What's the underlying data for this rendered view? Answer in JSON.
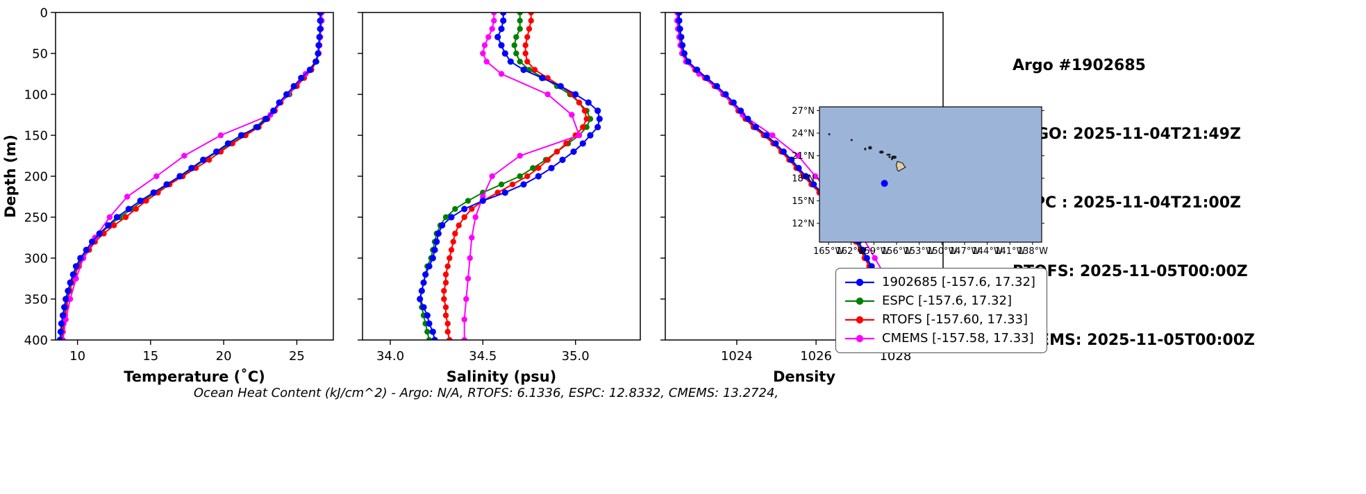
{
  "header": {
    "lines": [
      "Argo #1902685",
      "ARGO: 2025-11-04T21:49Z",
      "ESPC : 2025-11-04T21:00Z",
      "RTOFS: 2025-11-05T00:00Z",
      "CMEMS: 2025-11-05T00:00Z"
    ]
  },
  "footer": {
    "ohc_text": "Ocean Heat Content (kJ/cm^2) - Argo: N/A,  RTOFS: 6.1336,  ESPC: 12.8332,  CMEMS: 13.2724,"
  },
  "legend": {
    "position": "below-map-right",
    "entries": [
      {
        "label": "1902685 [-157.6, 17.32]",
        "color": "#0000ff"
      },
      {
        "label": "ESPC [-157.6, 17.32]",
        "color": "#008000"
      },
      {
        "label": "RTOFS [-157.60, 17.33]",
        "color": "#ff0000"
      },
      {
        "label": "CMEMS [-157.58, 17.33]",
        "color": "#ff00ff"
      }
    ]
  },
  "map": {
    "ocean_color": "#9db4d9",
    "land_color": "#e0cda4",
    "lon_range": [
      -166.2,
      -136.8
    ],
    "lat_range": [
      9.5,
      27.5
    ],
    "lon_ticks": [
      -165,
      -162,
      -159,
      -156,
      -153,
      -150,
      -147,
      -144,
      -141,
      -138
    ],
    "lon_tick_labels": [
      "165°W",
      "162°W",
      "159°W",
      "156°W",
      "153°W",
      "150°W",
      "147°W",
      "144°W",
      "141°W",
      "138°W"
    ],
    "lat_ticks": [
      12,
      15,
      18,
      21,
      24,
      27
    ],
    "lat_tick_labels": [
      "12°N",
      "15°N",
      "18°N",
      "21°N",
      "24°N",
      "27°N"
    ],
    "float_marker": {
      "lon": -157.6,
      "lat": 17.32,
      "color": "#0000ff"
    },
    "islands_small": [
      [
        -160.15,
        21.9,
        0.13,
        0.18
      ],
      [
        -159.5,
        22.05,
        0.26,
        0.23
      ],
      [
        -158.0,
        21.48,
        0.3,
        0.2
      ],
      [
        -157.05,
        21.13,
        0.3,
        0.1
      ],
      [
        -156.93,
        20.82,
        0.14,
        0.12
      ],
      [
        -156.35,
        20.8,
        0.36,
        0.22
      ],
      [
        -156.6,
        20.55,
        0.12,
        0.08
      ],
      [
        -164.9,
        23.85,
        0.1,
        0.09
      ],
      [
        -161.95,
        23.08,
        0.06,
        0.06
      ]
    ],
    "big_island": [
      [
        -155.88,
        20.25
      ],
      [
        -155.55,
        20.13
      ],
      [
        -155.2,
        20.02
      ],
      [
        -154.95,
        19.6
      ],
      [
        -154.82,
        19.48
      ],
      [
        -155.1,
        19.3
      ],
      [
        -155.5,
        19.1
      ],
      [
        -155.68,
        18.93
      ],
      [
        -155.9,
        19.08
      ],
      [
        -155.92,
        19.35
      ],
      [
        -156.06,
        19.73
      ],
      [
        -155.97,
        20.0
      ]
    ]
  },
  "chart_data": {
    "type": "line",
    "description": "Argo float vs model vertical ocean profiles; depth axis inverted (0 m at top), markers on every sample.",
    "ylabel": "Depth (m)",
    "ylim": [
      0,
      400
    ],
    "yticks": [
      0,
      50,
      100,
      150,
      200,
      250,
      300,
      350,
      400
    ],
    "grid": false,
    "panels": [
      {
        "key": "temperature",
        "xlabel": "Temperature (˚C)",
        "xlim": [
          8.5,
          27.5
        ],
        "xticks": [
          10,
          15,
          20,
          25
        ],
        "xtick_labels": [
          "10",
          "15",
          "20",
          "25"
        ]
      },
      {
        "key": "salinity",
        "xlabel": "Salinity (psu)",
        "xlim": [
          33.85,
          35.35
        ],
        "xticks": [
          34.0,
          34.5,
          35.0
        ],
        "xtick_labels": [
          "34.0",
          "34.5",
          "35.0"
        ]
      },
      {
        "key": "density",
        "xlabel": "Density",
        "xlim": [
          1022.2,
          1029.2
        ],
        "xticks": [
          1024,
          1026,
          1028
        ],
        "xtick_labels": [
          "1024",
          "1026",
          "1028"
        ]
      }
    ],
    "plot_order": [
      1,
      2,
      3,
      0
    ],
    "series": [
      {
        "name": "1902685",
        "color": "#0000ff",
        "marker_r": 4.6,
        "depth": [
          0,
          10,
          20,
          30,
          40,
          50,
          60,
          70,
          80,
          90,
          100,
          110,
          120,
          130,
          140,
          150,
          160,
          170,
          180,
          190,
          200,
          210,
          220,
          230,
          240,
          250,
          260,
          270,
          280,
          290,
          300,
          310,
          320,
          330,
          340,
          350,
          360,
          370,
          380,
          390,
          400
        ],
        "temperature": [
          26.6,
          26.6,
          26.6,
          26.55,
          26.5,
          26.45,
          26.3,
          25.9,
          25.3,
          24.8,
          24.3,
          23.8,
          23.4,
          22.9,
          22.3,
          21.2,
          20.3,
          19.5,
          18.6,
          17.8,
          17.0,
          16.1,
          15.2,
          14.3,
          13.5,
          12.7,
          12.1,
          11.5,
          11.0,
          10.6,
          10.2,
          9.9,
          9.7,
          9.5,
          9.35,
          9.2,
          9.1,
          9.0,
          8.9,
          8.85,
          8.8
        ],
        "salinity": [
          34.61,
          34.61,
          34.6,
          34.58,
          34.6,
          34.62,
          34.65,
          34.72,
          34.82,
          34.92,
          35.0,
          35.07,
          35.12,
          35.13,
          35.12,
          35.08,
          35.04,
          34.99,
          34.93,
          34.87,
          34.8,
          34.72,
          34.62,
          34.5,
          34.4,
          34.33,
          34.28,
          34.26,
          34.25,
          34.24,
          34.23,
          34.21,
          34.19,
          34.18,
          34.17,
          34.16,
          34.18,
          34.2,
          34.21,
          34.23,
          34.24
        ],
        "density": [
          1022.55,
          1022.55,
          1022.57,
          1022.6,
          1022.63,
          1022.68,
          1022.78,
          1023.0,
          1023.25,
          1023.5,
          1023.72,
          1023.92,
          1024.1,
          1024.28,
          1024.48,
          1024.75,
          1024.98,
          1025.18,
          1025.38,
          1025.56,
          1025.74,
          1025.94,
          1026.14,
          1026.34,
          1026.52,
          1026.68,
          1026.82,
          1026.95,
          1027.07,
          1027.18,
          1027.28,
          1027.4,
          1027.52,
          1027.64,
          1027.76,
          1027.88,
          1027.98,
          1028.08,
          1028.17,
          1028.25,
          1028.32
        ]
      },
      {
        "name": "ESPC",
        "color": "#008000",
        "marker_r": 4.2,
        "depth": [
          0,
          10,
          20,
          30,
          40,
          50,
          60,
          70,
          80,
          90,
          100,
          110,
          120,
          130,
          140,
          150,
          160,
          170,
          180,
          190,
          200,
          210,
          220,
          230,
          240,
          250,
          260,
          270,
          280,
          290,
          300,
          310,
          320,
          330,
          340,
          350,
          360,
          370,
          380,
          390,
          400
        ],
        "temperature": [
          26.7,
          26.7,
          26.65,
          26.6,
          26.55,
          26.5,
          26.35,
          26.0,
          25.4,
          24.9,
          24.5,
          23.9,
          23.4,
          22.8,
          22.2,
          21.4,
          20.5,
          19.6,
          18.7,
          17.9,
          17.1,
          16.2,
          15.3,
          14.5,
          13.7,
          12.9,
          12.2,
          11.6,
          11.1,
          10.7,
          10.3,
          10.0,
          9.8,
          9.6,
          9.45,
          9.3,
          9.2,
          9.1,
          9.0,
          8.95,
          8.9
        ],
        "salinity": [
          34.7,
          34.7,
          34.7,
          34.68,
          34.67,
          34.68,
          34.7,
          34.75,
          34.83,
          34.9,
          34.97,
          35.02,
          35.06,
          35.08,
          35.06,
          35.02,
          34.96,
          34.9,
          34.84,
          34.77,
          34.7,
          34.6,
          34.5,
          34.42,
          34.35,
          34.3,
          34.27,
          34.25,
          34.24,
          34.23,
          34.22,
          34.2,
          34.19,
          34.18,
          34.17,
          34.16,
          34.17,
          34.18,
          34.19,
          34.2,
          34.21
        ],
        "density": [
          1022.52,
          1022.52,
          1022.54,
          1022.57,
          1022.6,
          1022.65,
          1022.75,
          1022.97,
          1023.22,
          1023.46,
          1023.68,
          1023.88,
          1024.06,
          1024.25,
          1024.45,
          1024.72,
          1024.95,
          1025.15,
          1025.35,
          1025.53,
          1025.71,
          1025.91,
          1026.11,
          1026.3,
          1026.48,
          1026.64,
          1026.79,
          1026.92,
          1027.04,
          1027.15,
          1027.25,
          1027.37,
          1027.49,
          1027.61,
          1027.73,
          1027.85,
          1027.95,
          1028.05,
          1028.14,
          1028.22,
          1028.29
        ]
      },
      {
        "name": "RTOFS",
        "color": "#ff0000",
        "marker_r": 4.2,
        "depth": [
          0,
          10,
          20,
          30,
          40,
          50,
          60,
          70,
          80,
          90,
          100,
          110,
          120,
          130,
          140,
          150,
          160,
          170,
          180,
          190,
          200,
          210,
          220,
          230,
          240,
          250,
          260,
          270,
          280,
          290,
          300,
          310,
          320,
          330,
          340,
          350,
          360,
          370,
          380,
          390,
          400
        ],
        "temperature": [
          26.65,
          26.65,
          26.6,
          26.6,
          26.55,
          26.5,
          26.3,
          26.0,
          25.5,
          25.0,
          24.4,
          23.9,
          23.5,
          23.0,
          22.4,
          21.5,
          20.6,
          19.8,
          19.0,
          18.1,
          17.2,
          16.3,
          15.5,
          14.7,
          14.0,
          13.3,
          12.5,
          11.8,
          11.2,
          10.8,
          10.4,
          10.1,
          9.8,
          9.6,
          9.5,
          9.35,
          9.25,
          9.15,
          9.05,
          9.0,
          8.95
        ],
        "salinity": [
          34.76,
          34.76,
          34.75,
          34.74,
          34.73,
          34.73,
          34.74,
          34.78,
          34.85,
          34.92,
          34.98,
          35.02,
          35.05,
          35.06,
          35.04,
          35.0,
          34.95,
          34.9,
          34.85,
          34.8,
          34.74,
          34.66,
          34.58,
          34.5,
          34.44,
          34.4,
          34.37,
          34.35,
          34.34,
          34.33,
          34.32,
          34.31,
          34.3,
          34.3,
          34.29,
          34.29,
          34.3,
          34.3,
          34.31,
          34.31,
          34.32
        ],
        "density": [
          1022.5,
          1022.5,
          1022.52,
          1022.55,
          1022.58,
          1022.63,
          1022.73,
          1022.95,
          1023.2,
          1023.44,
          1023.66,
          1023.86,
          1024.04,
          1024.22,
          1024.42,
          1024.68,
          1024.92,
          1025.12,
          1025.32,
          1025.5,
          1025.68,
          1025.88,
          1026.08,
          1026.27,
          1026.45,
          1026.6,
          1026.75,
          1026.88,
          1027.0,
          1027.12,
          1027.22,
          1027.34,
          1027.46,
          1027.58,
          1027.7,
          1027.82,
          1027.92,
          1028.02,
          1028.11,
          1028.19,
          1028.26
        ]
      },
      {
        "name": "CMEMS",
        "color": "#ff00ff",
        "marker_r": 4.2,
        "depth": [
          0,
          10,
          20,
          30,
          40,
          50,
          60,
          75,
          100,
          125,
          150,
          175,
          200,
          225,
          250,
          275,
          300,
          325,
          350,
          375,
          400
        ],
        "temperature": [
          26.7,
          26.7,
          26.65,
          26.6,
          26.55,
          26.5,
          26.3,
          25.6,
          24.4,
          23.2,
          19.8,
          17.3,
          15.4,
          13.4,
          12.2,
          11.2,
          10.4,
          9.9,
          9.5,
          9.2,
          9.0
        ],
        "salinity": [
          34.56,
          34.56,
          34.55,
          34.53,
          34.51,
          34.5,
          34.52,
          34.6,
          34.85,
          34.98,
          35.02,
          34.7,
          34.55,
          34.5,
          34.46,
          34.44,
          34.43,
          34.42,
          34.41,
          34.4,
          34.4
        ],
        "density": [
          1022.5,
          1022.5,
          1022.52,
          1022.55,
          1022.58,
          1022.62,
          1022.72,
          1023.05,
          1023.68,
          1024.15,
          1024.9,
          1025.55,
          1025.98,
          1026.45,
          1026.85,
          1027.18,
          1027.48,
          1027.78,
          1028.02,
          1028.28,
          1028.48
        ]
      }
    ]
  }
}
